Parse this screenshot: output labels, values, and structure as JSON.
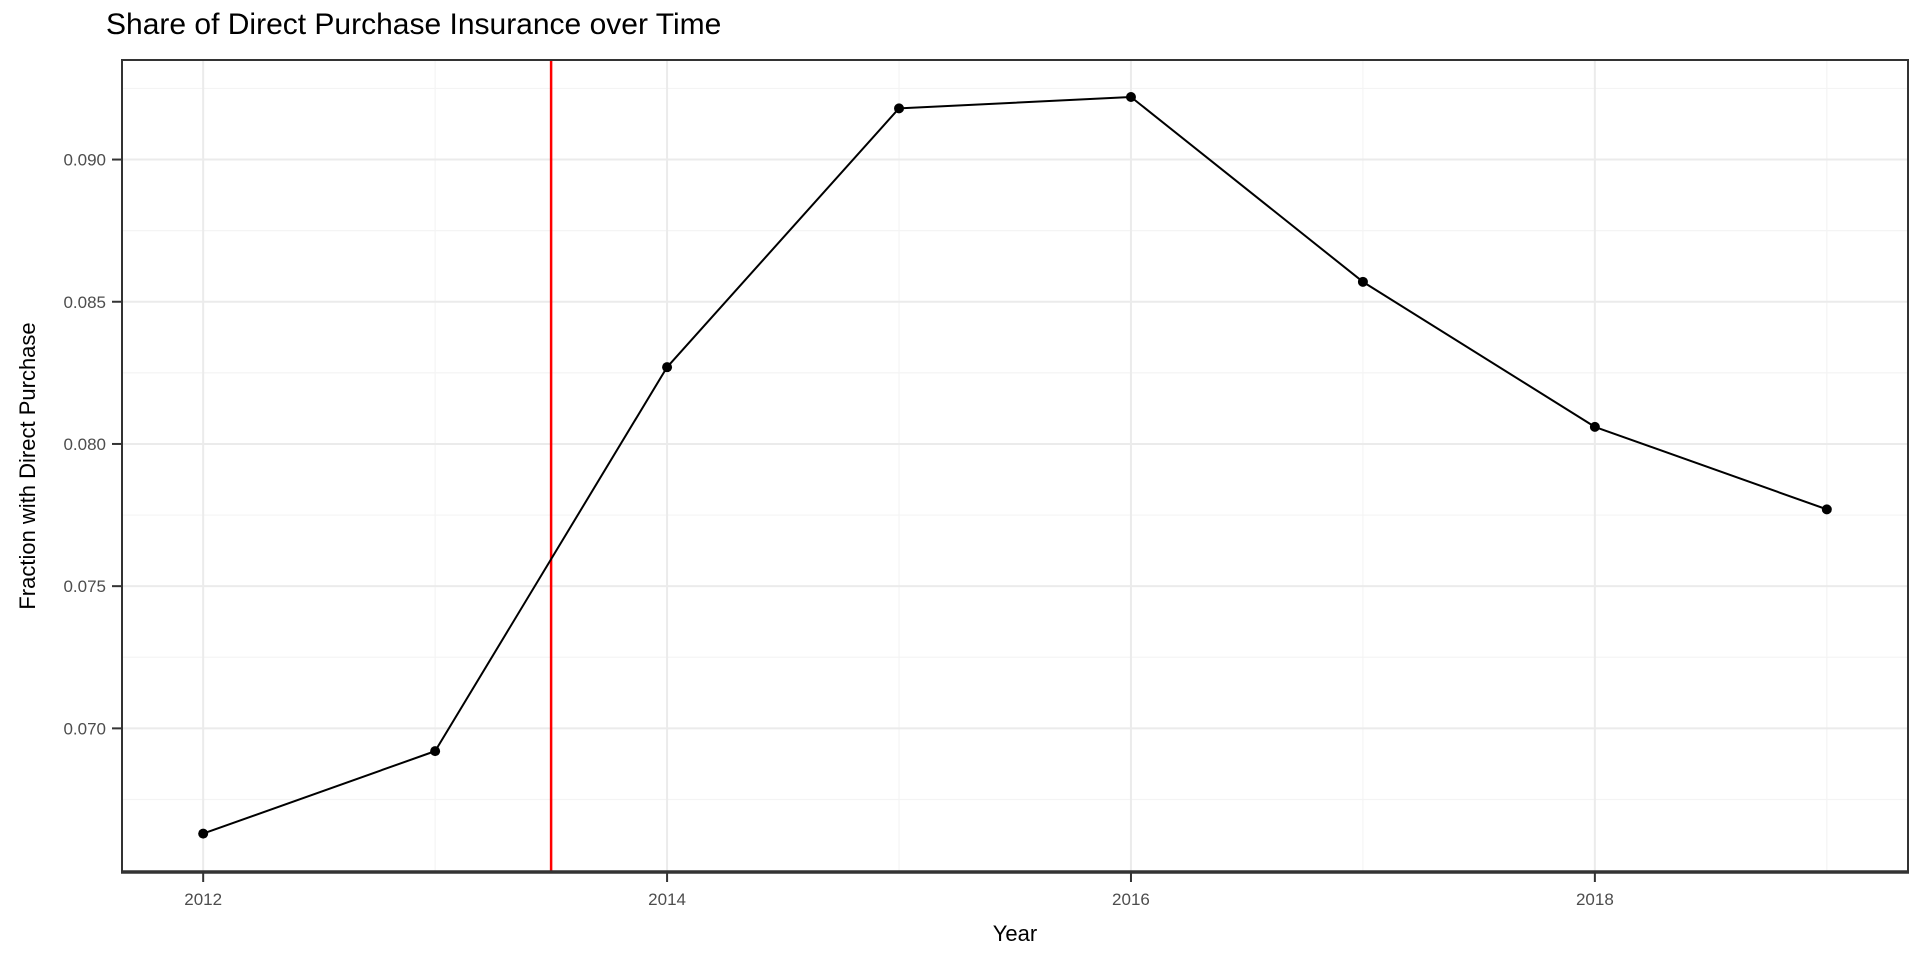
{
  "chart_data": {
    "type": "line",
    "title": "Share of Direct Purchase Insurance over Time",
    "xlabel": "Year",
    "ylabel": "Fraction with Direct Purchase",
    "x": [
      2012,
      2013,
      2014,
      2015,
      2016,
      2017,
      2018,
      2019
    ],
    "series": [
      {
        "name": "fraction_direct_purchase",
        "values": [
          0.0663,
          0.0692,
          0.0827,
          0.0918,
          0.0922,
          0.0857,
          0.0806,
          0.0777
        ]
      }
    ],
    "xlim": [
      2011.65,
      2019.35
    ],
    "ylim": [
      0.06495,
      0.0935
    ],
    "xticks": [
      2012,
      2014,
      2016,
      2018
    ],
    "xtick_labels": [
      "2012",
      "2014",
      "2016",
      "2018"
    ],
    "yticks": [
      0.07,
      0.075,
      0.08,
      0.085,
      0.09
    ],
    "ytick_labels": [
      "0.070",
      "0.075",
      "0.080",
      "0.085",
      "0.090"
    ],
    "x_minor_gridlines": [
      2013,
      2015,
      2017,
      2019
    ],
    "y_minor_gridlines": [
      0.0675,
      0.0725,
      0.0775,
      0.0825,
      0.0875,
      0.0925
    ],
    "grid": true,
    "legend_position": "none",
    "reference_line": {
      "orientation": "vertical",
      "x": 2013.5
    },
    "colors": {
      "line": "#000000",
      "point": "#000000",
      "reference_line": "#FF0000",
      "grid_major": "#EBEBEB",
      "grid_minor": "#F4F4F4",
      "panel_border": "#333333",
      "axis_line": "#333333",
      "tick_mark": "#333333",
      "tick_label": "#4D4D4D",
      "title_text": "#000000",
      "background": "#FFFFFF"
    }
  }
}
